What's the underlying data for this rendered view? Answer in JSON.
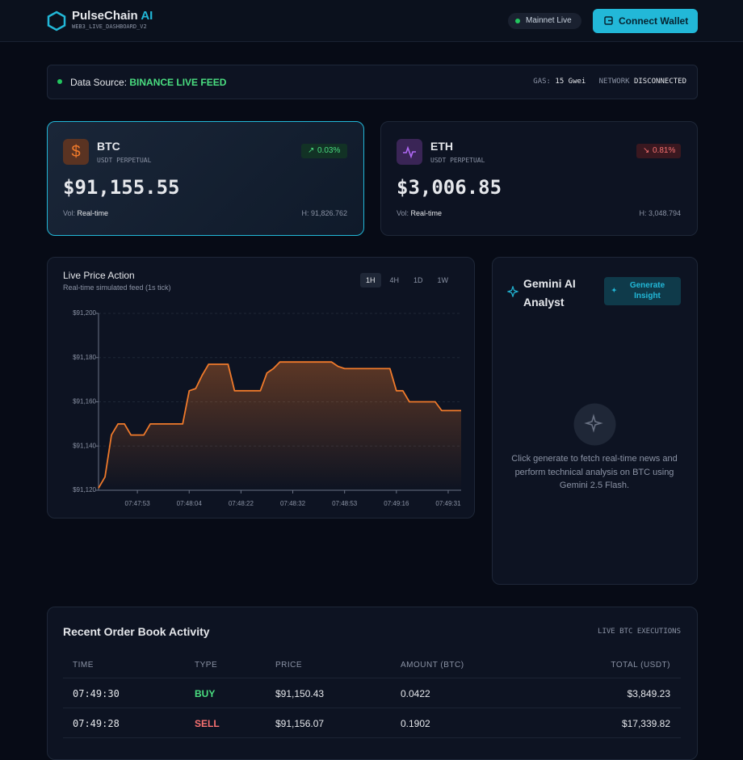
{
  "header": {
    "brand": "PulseChain",
    "brand_accent": "AI",
    "subtitle": "WEB3_LIVE_DASHBOARD_V2",
    "network_status": "Mainnet Live",
    "connect_button": "Connect Wallet"
  },
  "status_bar": {
    "source_label": "Data Source:",
    "source_value": "BINANCE LIVE FEED",
    "gas_label": "GAS:",
    "gas_value": "15 Gwei",
    "network_label": "NETWORK",
    "network_value": "DISCONNECTED"
  },
  "tickers": [
    {
      "symbol": "BTC",
      "market": "USDT PERPETUAL",
      "change": "0.03%",
      "price": "$91,155.55",
      "volume_label": "Vol:",
      "volume": "Real-time",
      "high": "H: 91,826.762"
    },
    {
      "symbol": "ETH",
      "market": "USDT PERPETUAL",
      "change": "0.81%",
      "price": "$3,006.85",
      "volume_label": "Vol:",
      "volume": "Real-time",
      "high": "H: 3,048.794"
    }
  ],
  "price_chart": {
    "type": "line",
    "title": "Live Price Action",
    "subtitle": "Real-time simulated feed (1s tick)",
    "ranges": [
      "1H",
      "4H",
      "1D",
      "1W"
    ],
    "categories": [
      null,
      null,
      null,
      null,
      null,
      null,
      "07:47:53",
      null,
      null,
      null,
      null,
      null,
      null,
      null,
      "07:48:04",
      null,
      null,
      null,
      null,
      null,
      null,
      null,
      "07:48:22",
      null,
      null,
      null,
      null,
      null,
      null,
      null,
      "07:48:32",
      null,
      null,
      null,
      null,
      null,
      null,
      null,
      "07:48:53",
      null,
      null,
      null,
      null,
      null,
      null,
      null,
      "07:49:16",
      null,
      null,
      null,
      null,
      null,
      null,
      null,
      "07:49:31",
      null,
      null
    ],
    "values": [
      91121,
      91126,
      91145,
      91150,
      91150,
      91145,
      91145,
      91145,
      91150,
      91150,
      91150,
      91150,
      91150,
      91150,
      91165,
      91166,
      91172,
      91177,
      91177,
      91177,
      91177,
      91165,
      91165,
      91165,
      91165,
      91165,
      91173,
      91175,
      91178,
      91178,
      91178,
      91178,
      91178,
      91178,
      91178,
      91178,
      91178,
      91176,
      91175,
      91175,
      91175,
      91175,
      91175,
      91175,
      91175,
      91175,
      91165,
      91165,
      91160,
      91160,
      91160,
      91160,
      91160,
      91156,
      91156,
      91156,
      91156
    ],
    "color": "#f07a2b",
    "ylim": [
      91120,
      91200
    ],
    "yticks": [
      {
        "value": 91120,
        "label": "$91,120"
      },
      {
        "value": 91140,
        "label": "$91,140"
      },
      {
        "value": 91160,
        "label": "$91,160"
      },
      {
        "value": 91180,
        "label": "$91,180"
      },
      {
        "value": 91200,
        "label": "$91,200"
      }
    ],
    "grid": true
  },
  "ai_panel": {
    "title": "Gemini AI Analyst",
    "button": "Generate Insight",
    "message": "Click generate to fetch real-time news and perform technical analysis on BTC using Gemini 2.5 Flash."
  },
  "order_book": {
    "title": "Recent Order Book Activity",
    "tag": "LIVE BTC EXECUTIONS",
    "columns": [
      "TIME",
      "TYPE",
      "PRICE",
      "AMOUNT (BTC)",
      "TOTAL (USDT)"
    ],
    "rows": [
      [
        "07:49:30",
        "BUY",
        "$91,150.43",
        "0.0422",
        "$3,849.23"
      ],
      [
        "07:49:28",
        "SELL",
        "$91,156.07",
        "0.1902",
        "$17,339.82"
      ]
    ]
  }
}
